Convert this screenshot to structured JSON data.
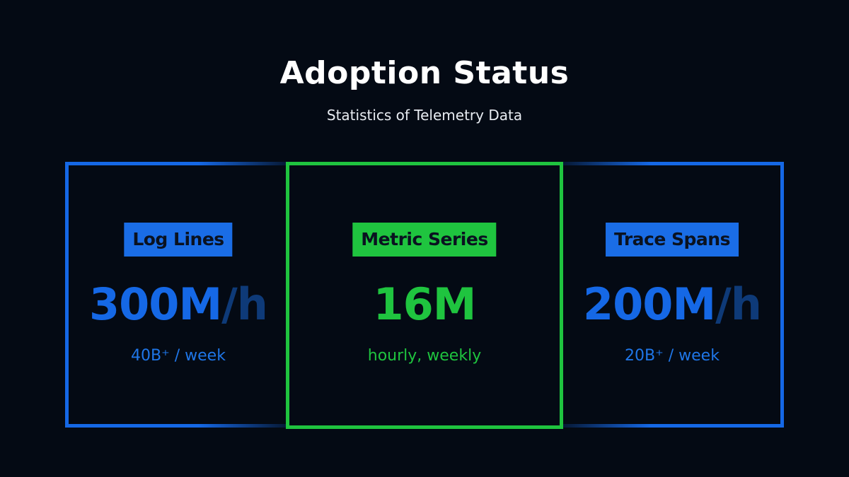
{
  "header": {
    "title": "Adoption Status",
    "subtitle": "Statistics of Telemetry Data"
  },
  "colors": {
    "blue": "#1568e6",
    "green": "#1fc43f",
    "background": "#040a14"
  },
  "cards": {
    "log_lines": {
      "label": "Log Lines",
      "value": "300M",
      "unit": "/h",
      "detail": "40B⁺ / week"
    },
    "metric_series": {
      "label": "Metric Series",
      "value": "16M",
      "detail": "hourly, weekly"
    },
    "trace_spans": {
      "label": "Trace Spans",
      "value": "200M",
      "unit": "/h",
      "detail": "20B⁺ / week"
    }
  }
}
